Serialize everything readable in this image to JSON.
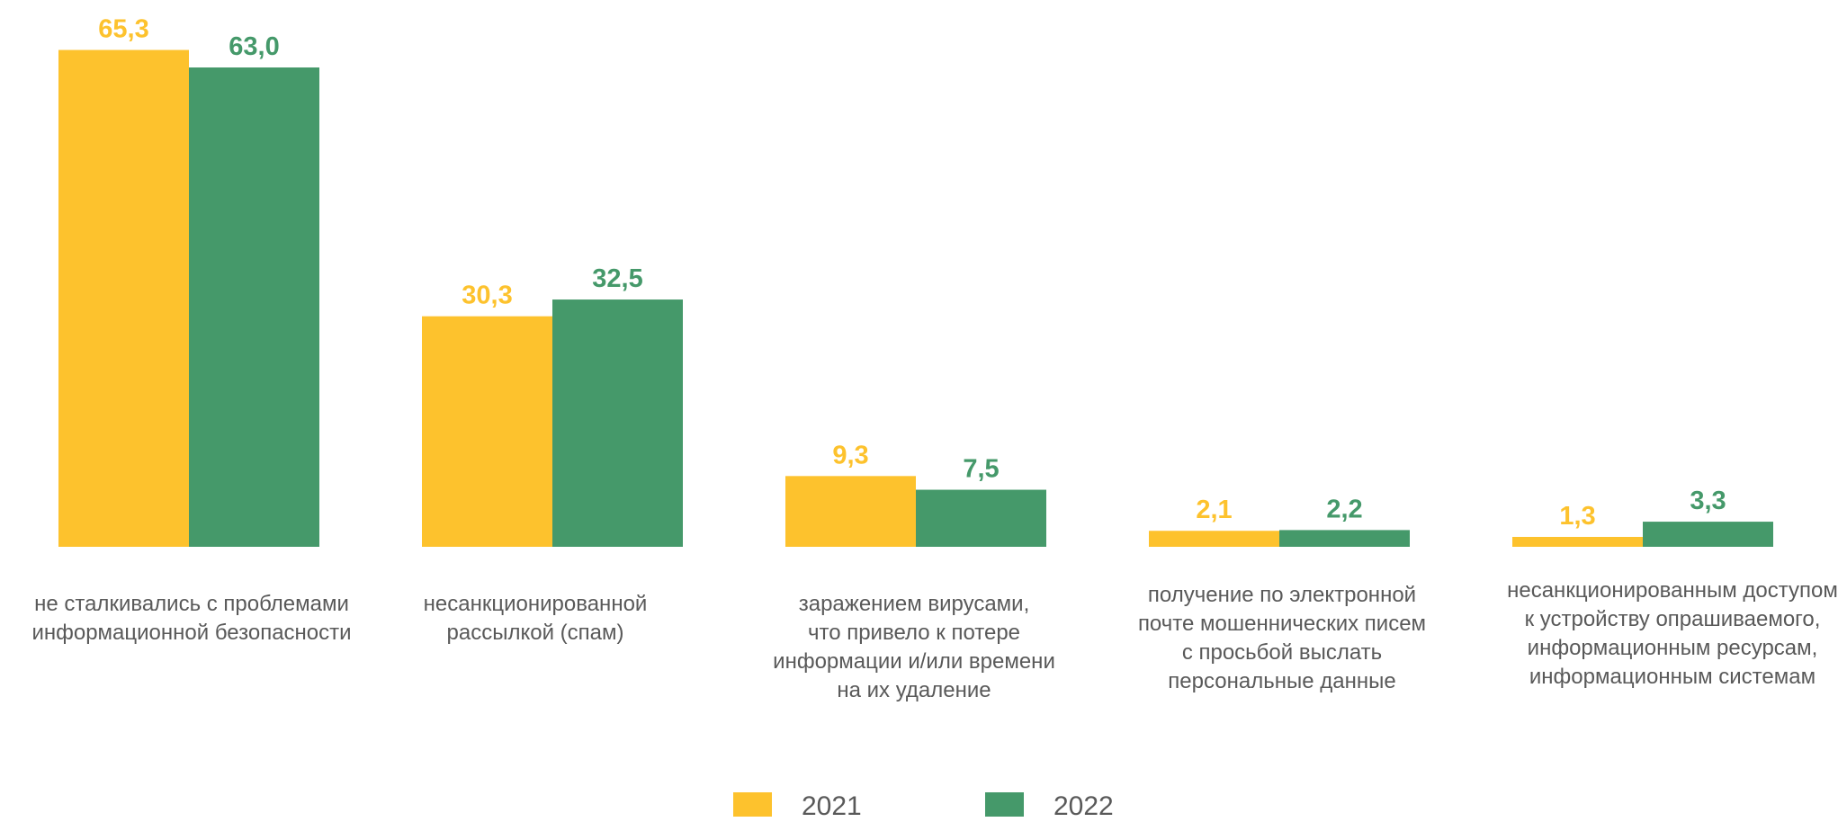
{
  "chart_data": {
    "type": "bar",
    "categories": [
      [
        "не сталкивались с проблемами",
        "информационной безопасности"
      ],
      [
        "несанкционированной",
        "рассылкой (спам)"
      ],
      [
        "заражением вирусами,",
        "что привело к потере",
        "информации и/или времени",
        "на их удаление"
      ],
      [
        "получение по электронной",
        "почте мошеннических писем",
        "с просьбой выслать",
        "персональные данные"
      ],
      [
        "несанкционированным доступом",
        "к устройству опрашиваемого,",
        "информационным ресурсам,",
        "информационным системам"
      ]
    ],
    "series": [
      {
        "name": "2021",
        "color": "#FDC22D",
        "values": [
          65.3,
          30.3,
          9.3,
          2.1,
          1.3
        ],
        "labels": [
          "65,3",
          "30,3",
          "9,3",
          "2,1",
          "1,3"
        ]
      },
      {
        "name": "2022",
        "color": "#45996A",
        "values": [
          63.0,
          32.5,
          7.5,
          2.2,
          3.3
        ],
        "labels": [
          "63,0",
          "32,5",
          "7,5",
          "2,2",
          "3,3"
        ]
      }
    ],
    "ylim": [
      0,
      70
    ],
    "grid": false,
    "legend_position": "bottom"
  }
}
